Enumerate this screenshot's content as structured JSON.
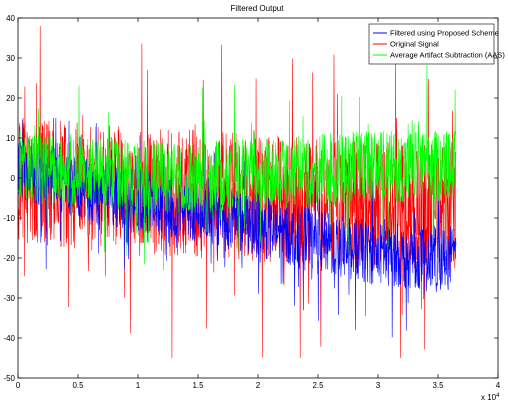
{
  "chart_data": {
    "type": "line",
    "title": "Filtered Output",
    "xlabel": "",
    "ylabel": "",
    "xlim": [
      0,
      40000
    ],
    "ylim": [
      -50,
      40
    ],
    "x_ticks": [
      0,
      5000,
      10000,
      15000,
      20000,
      25000,
      30000,
      35000,
      40000
    ],
    "x_tick_labels": [
      "0",
      "0.5",
      "1",
      "1.5",
      "2",
      "2.5",
      "3",
      "3.5",
      "4"
    ],
    "x_multiplier": "x 10",
    "x_multiplier_exp": "4",
    "y_ticks": [
      -50,
      -40,
      -30,
      -20,
      -10,
      0,
      10,
      20,
      30,
      40
    ],
    "y_tick_labels": [
      "-50",
      "-40",
      "-30",
      "-20",
      "-10",
      "0",
      "10",
      "20",
      "30",
      "40"
    ],
    "grid": false,
    "legend_position": "top-right",
    "x_end": 36500,
    "series": [
      {
        "name": "Filtered using Proposed Scheme",
        "color": "#0000ff",
        "trend": [
          [
            0,
            3
          ],
          [
            5000,
            -2
          ],
          [
            10000,
            -6
          ],
          [
            15000,
            -8
          ],
          [
            20000,
            -12
          ],
          [
            25000,
            -16
          ],
          [
            30000,
            -19
          ],
          [
            35000,
            -20
          ],
          [
            36500,
            -20
          ]
        ],
        "amplitude": 8,
        "min": -42,
        "max": 15
      },
      {
        "name": "Original Signal",
        "color": "#ff0000",
        "trend": [
          [
            0,
            -1
          ],
          [
            5000,
            -2
          ],
          [
            10000,
            -3
          ],
          [
            15000,
            -4
          ],
          [
            20000,
            -5
          ],
          [
            25000,
            -6
          ],
          [
            30000,
            -7
          ],
          [
            35000,
            -7
          ],
          [
            36500,
            -7
          ]
        ],
        "amplitude": 16,
        "min": -45,
        "max": 38
      },
      {
        "name": "Average Artifact Subtraction (AAS)",
        "color": "#00ff00",
        "trend": [
          [
            0,
            2
          ],
          [
            5000,
            2
          ],
          [
            10000,
            0
          ],
          [
            15000,
            0
          ],
          [
            20000,
            1
          ],
          [
            25000,
            2
          ],
          [
            30000,
            3
          ],
          [
            35000,
            3
          ],
          [
            36500,
            3
          ]
        ],
        "amplitude": 9,
        "min": -40,
        "max": 32
      }
    ]
  }
}
